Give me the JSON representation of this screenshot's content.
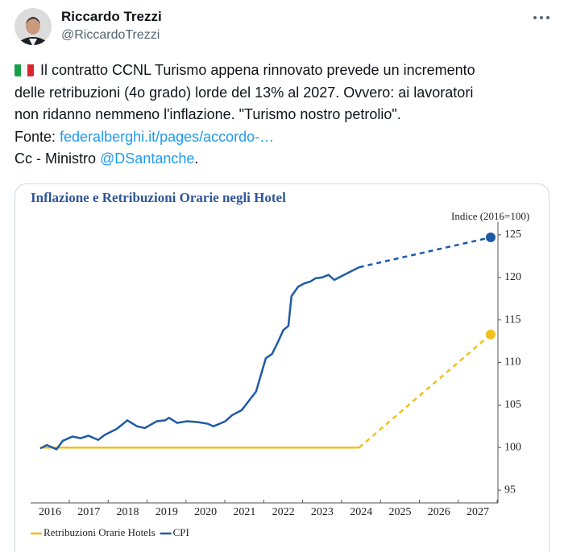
{
  "tweet": {
    "author": {
      "name": "Riccardo Trezzi",
      "handle": "@RiccardoTrezzi"
    },
    "lines": [
      [
        "Il contratto CCNL Turismo appena rinnovato prevede un incremento"
      ],
      [
        "delle retribuzioni (4o grado) lorde del 13% al 2027. Ovvero: ai lavoratori"
      ],
      [
        "non ridanno nemmeno l'inflazione. \"Turismo nostro petrolio\"."
      ],
      [
        "Fonte: ",
        "federalberghi.it/pages/accordo-…"
      ],
      [
        "Cc - Ministro ",
        "@DSantanche",
        "."
      ]
    ]
  },
  "chart_data": {
    "type": "line",
    "title": "Inflazione e Retribuzioni Orarie negli Hotel",
    "y_axis_label": "Indice (2016=100)",
    "xlim": [
      2015.7,
      2027.6
    ],
    "xticks": [
      2016,
      2017,
      2018,
      2019,
      2020,
      2021,
      2022,
      2023,
      2024,
      2025,
      2026,
      2027
    ],
    "ylim": [
      93.5,
      126.5
    ],
    "yticks": [
      95,
      100,
      105,
      110,
      115,
      120,
      125
    ],
    "y_axis_side": "right",
    "grid": false,
    "legend": "bottom-left",
    "series": [
      {
        "name": "Retribuzioni Orarie Hotels",
        "color": "#f2bf1d",
        "dashed_from": 1,
        "end_marker": true,
        "x": [
          2015.75,
          2023.95,
          2027.33
        ],
        "values": [
          100,
          100,
          113.3
        ]
      },
      {
        "name": "CPI",
        "color": "#1f5aa6",
        "dashed_from": 40,
        "end_marker": true,
        "x": [
          2015.75,
          2015.92,
          2016.17,
          2016.33,
          2016.58,
          2016.79,
          2016.99,
          2017.24,
          2017.41,
          2017.72,
          2017.99,
          2018.24,
          2018.44,
          2018.75,
          2018.96,
          2019.06,
          2019.27,
          2019.52,
          2019.79,
          2020.06,
          2020.2,
          2020.31,
          2020.51,
          2020.68,
          2020.93,
          2021.3,
          2021.55,
          2021.71,
          2021.86,
          2022.0,
          2022.13,
          2022.21,
          2022.38,
          2022.54,
          2022.69,
          2022.83,
          2023.0,
          2023.16,
          2023.31,
          2023.52,
          2023.95,
          2027.33
        ],
        "values": [
          99.9,
          100.3,
          99.8,
          100.8,
          101.3,
          101.1,
          101.4,
          100.9,
          101.5,
          102.2,
          103.2,
          102.5,
          102.3,
          103.1,
          103.2,
          103.5,
          102.9,
          103.1,
          103.0,
          102.8,
          102.5,
          102.7,
          103.1,
          103.8,
          104.4,
          106.6,
          110.5,
          111.0,
          112.4,
          113.8,
          114.3,
          117.8,
          118.9,
          119.3,
          119.5,
          119.9,
          120.0,
          120.3,
          119.7,
          120.2,
          121.2,
          124.7
        ]
      }
    ]
  }
}
